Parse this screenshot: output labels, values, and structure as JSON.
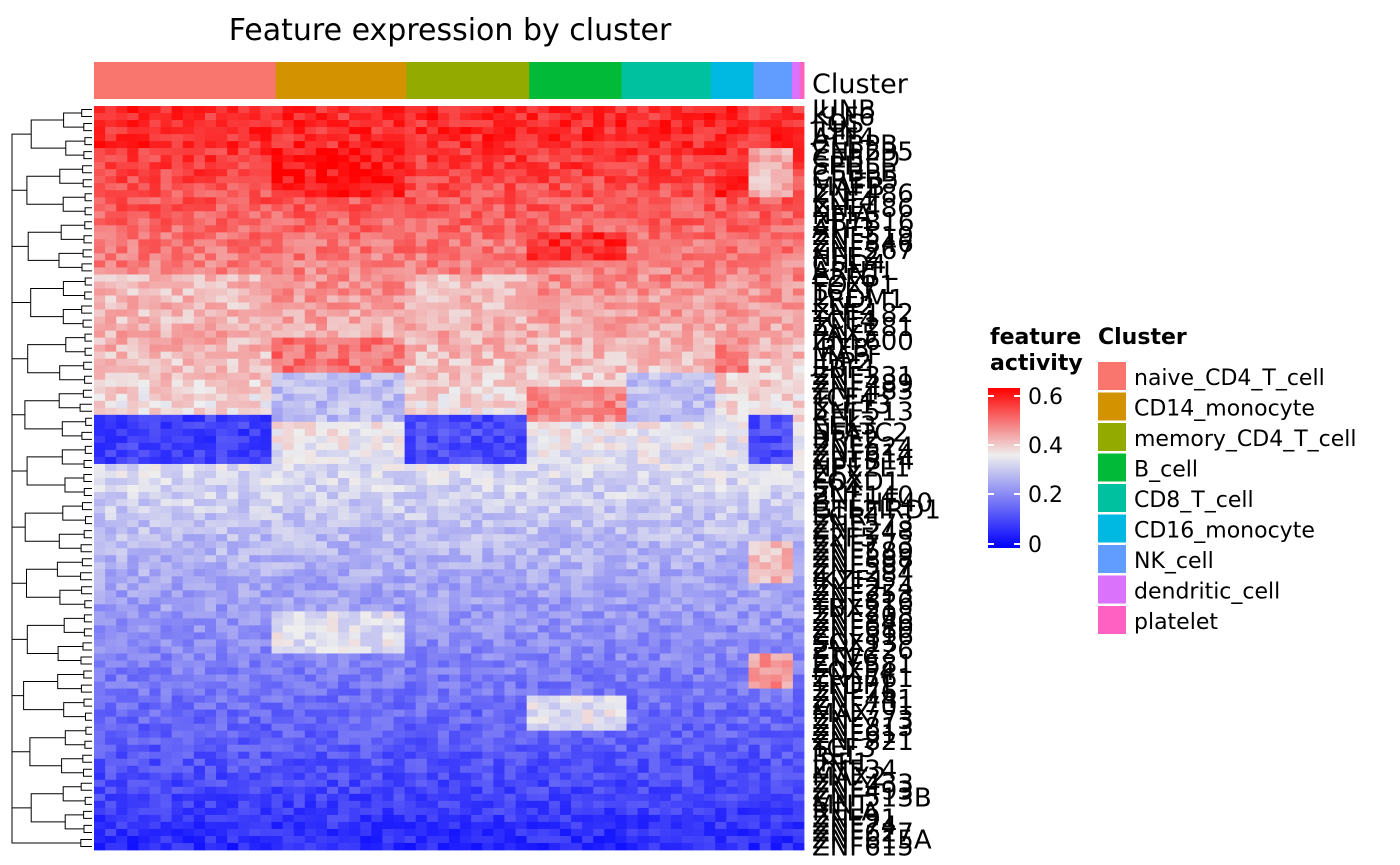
{
  "chart_data": {
    "type": "heatmap",
    "title": "Feature expression by cluster",
    "column_annotation": {
      "name": "Cluster",
      "groups": [
        {
          "name": "naive_CD4_T_cell",
          "color": "#F8766D",
          "share": 0.256
        },
        {
          "name": "CD14_monocyte",
          "color": "#D39200",
          "share": 0.184
        },
        {
          "name": "memory_CD4_T_cell",
          "color": "#93AA00",
          "share": 0.173
        },
        {
          "name": "B_cell",
          "color": "#00BA38",
          "share": 0.13
        },
        {
          "name": "CD8_T_cell",
          "color": "#00C19F",
          "share": 0.126
        },
        {
          "name": "CD16_monocyte",
          "color": "#00B9E3",
          "share": 0.06
        },
        {
          "name": "NK_cell",
          "color": "#619CFF",
          "share": 0.054
        },
        {
          "name": "dendritic_cell",
          "color": "#DB72FB",
          "share": 0.011
        },
        {
          "name": "platelet",
          "color": "#FF61C3",
          "share": 0.006
        }
      ]
    },
    "row_labels": [
      "JUNB",
      "KLF6",
      "FOS",
      "JUN",
      "ATF4",
      "CEBPB",
      "ZNF235",
      "CEBPD",
      "SPI1",
      "CEBPB",
      "CREB5",
      "MAFB",
      "ZNF486",
      "KLF4",
      "ZNF486",
      "NFIA",
      "ZBTB16",
      "ATF3",
      "ZNF519",
      "ZNF846",
      "ZNF267",
      "NFE2",
      "CHD4",
      "ARNTL",
      "E2F6",
      "FOXP1",
      "TCF7",
      "PRDM1",
      "KLF2",
      "ZNF182",
      "TCF4",
      "ZNF281",
      "PAX5",
      "ZNF600",
      "IRF8",
      "MAFF",
      "JDP2",
      "EBF1",
      "ZNF331",
      "ZNF489",
      "ZNF483",
      "TCF4",
      "KLF13",
      "ZNF513",
      "REL",
      "ELK3",
      "NFATC2",
      "BRF2",
      "ZNF524",
      "ZNF614",
      "ZBTB14",
      "NFE2L1",
      "ZFX",
      "FOXD1",
      "SP4",
      "ZNF140",
      "BHLHE40",
      "GTF2IRD1",
      "EGR1",
      "ZNF573",
      "ZNF248",
      "E2F5",
      "ZNF773",
      "ZNF589",
      "ZNF888",
      "ZNF587",
      "ZNF284",
      "IKZF1",
      "ZNF224",
      "ZNF253",
      "ZNF816",
      "TBX21",
      "ZNF208",
      "ZNF846",
      "ZNF680",
      "ZNF816",
      "SOX13",
      "ZNF226",
      "ETV6",
      "ZNF581",
      "FOXP4",
      "ZNF761",
      "TFDP1",
      "ZNF76",
      "ZNF441",
      "ZNF701",
      "MAX",
      "ZNF773",
      "ZNF813",
      "ZNF61",
      "ZNF821",
      "TCF3",
      "REL",
      "IRF1",
      "ZNF34",
      "MAX2",
      "ZNF433",
      "ZNF493",
      "ZNF513B",
      "MNT",
      "RELA",
      "ZNF91",
      "ZNF74",
      "ZNF627",
      "ZNF615A",
      "ZNF615"
    ],
    "legend": {
      "continuous": {
        "title": "feature\nactivity",
        "ticks": [
          0,
          0.2,
          0.4,
          0.6
        ],
        "range": [
          0,
          0.65
        ],
        "colors": [
          "#0000FF",
          "#EEEEEE",
          "#FF0000"
        ],
        "midpoint": 0.38
      },
      "discrete_title": "Cluster"
    }
  },
  "labels": {
    "title": "Feature expression by cluster",
    "annotation_label": "Cluster",
    "legend_continuous_title_line1": "feature",
    "legend_continuous_title_line2": "activity",
    "legend_cluster_title": "Cluster",
    "tick_0": "0",
    "tick_1": "0.2",
    "tick_2": "0.4",
    "tick_3": "0.6",
    "clusters": [
      "naive_CD4_T_cell",
      "CD14_monocyte",
      "memory_CD4_T_cell",
      "B_cell",
      "CD8_T_cell",
      "CD16_monocyte",
      "NK_cell",
      "dendritic_cell",
      "platelet"
    ]
  },
  "colors": {
    "low": "#0000FF",
    "mid": "#EEEEEE",
    "high": "#FF0000"
  }
}
